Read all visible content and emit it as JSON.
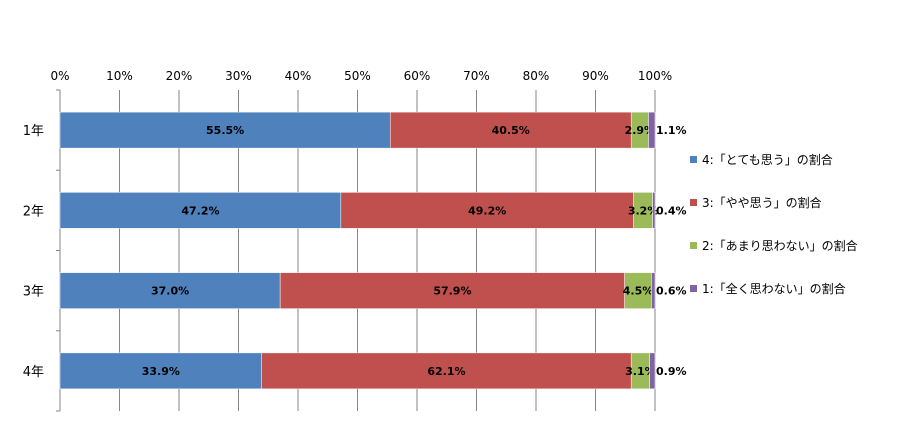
{
  "chart_data": {
    "type": "bar",
    "orientation": "horizontal",
    "stacked": true,
    "categories": [
      "1年",
      "2年",
      "3年",
      "4年"
    ],
    "series": [
      {
        "name": "4:「とても思う」の割合",
        "values": [
          55.5,
          47.2,
          37.0,
          33.9
        ],
        "labels": [
          "55.5%",
          "47.2%",
          "37.0%",
          "33.9%"
        ],
        "color": "#4F81BD"
      },
      {
        "name": "3:「やや思う」の割合",
        "values": [
          40.5,
          49.2,
          57.9,
          62.1
        ],
        "labels": [
          "40.5%",
          "49.2%",
          "57.9%",
          "62.1%"
        ],
        "color": "#C0504D"
      },
      {
        "name": "2:「あまり思わない」の割合",
        "values": [
          2.9,
          3.2,
          4.5,
          3.1
        ],
        "labels": [
          "2.9%",
          "3.2%",
          "4.5%",
          "3.1%"
        ],
        "color": "#9BBB59"
      },
      {
        "name": "1:「全く思わない」の割合",
        "values": [
          1.1,
          0.4,
          0.6,
          0.9
        ],
        "labels": [
          "1.1%",
          "0.4%",
          "0.6%",
          "0.9%"
        ],
        "color": "#8064A2"
      }
    ],
    "x_ticks": [
      "0%",
      "10%",
      "20%",
      "30%",
      "40%",
      "50%",
      "60%",
      "70%",
      "80%",
      "90%",
      "100%"
    ],
    "xlim": [
      0,
      100
    ],
    "grid": true,
    "legend_position": "right"
  }
}
